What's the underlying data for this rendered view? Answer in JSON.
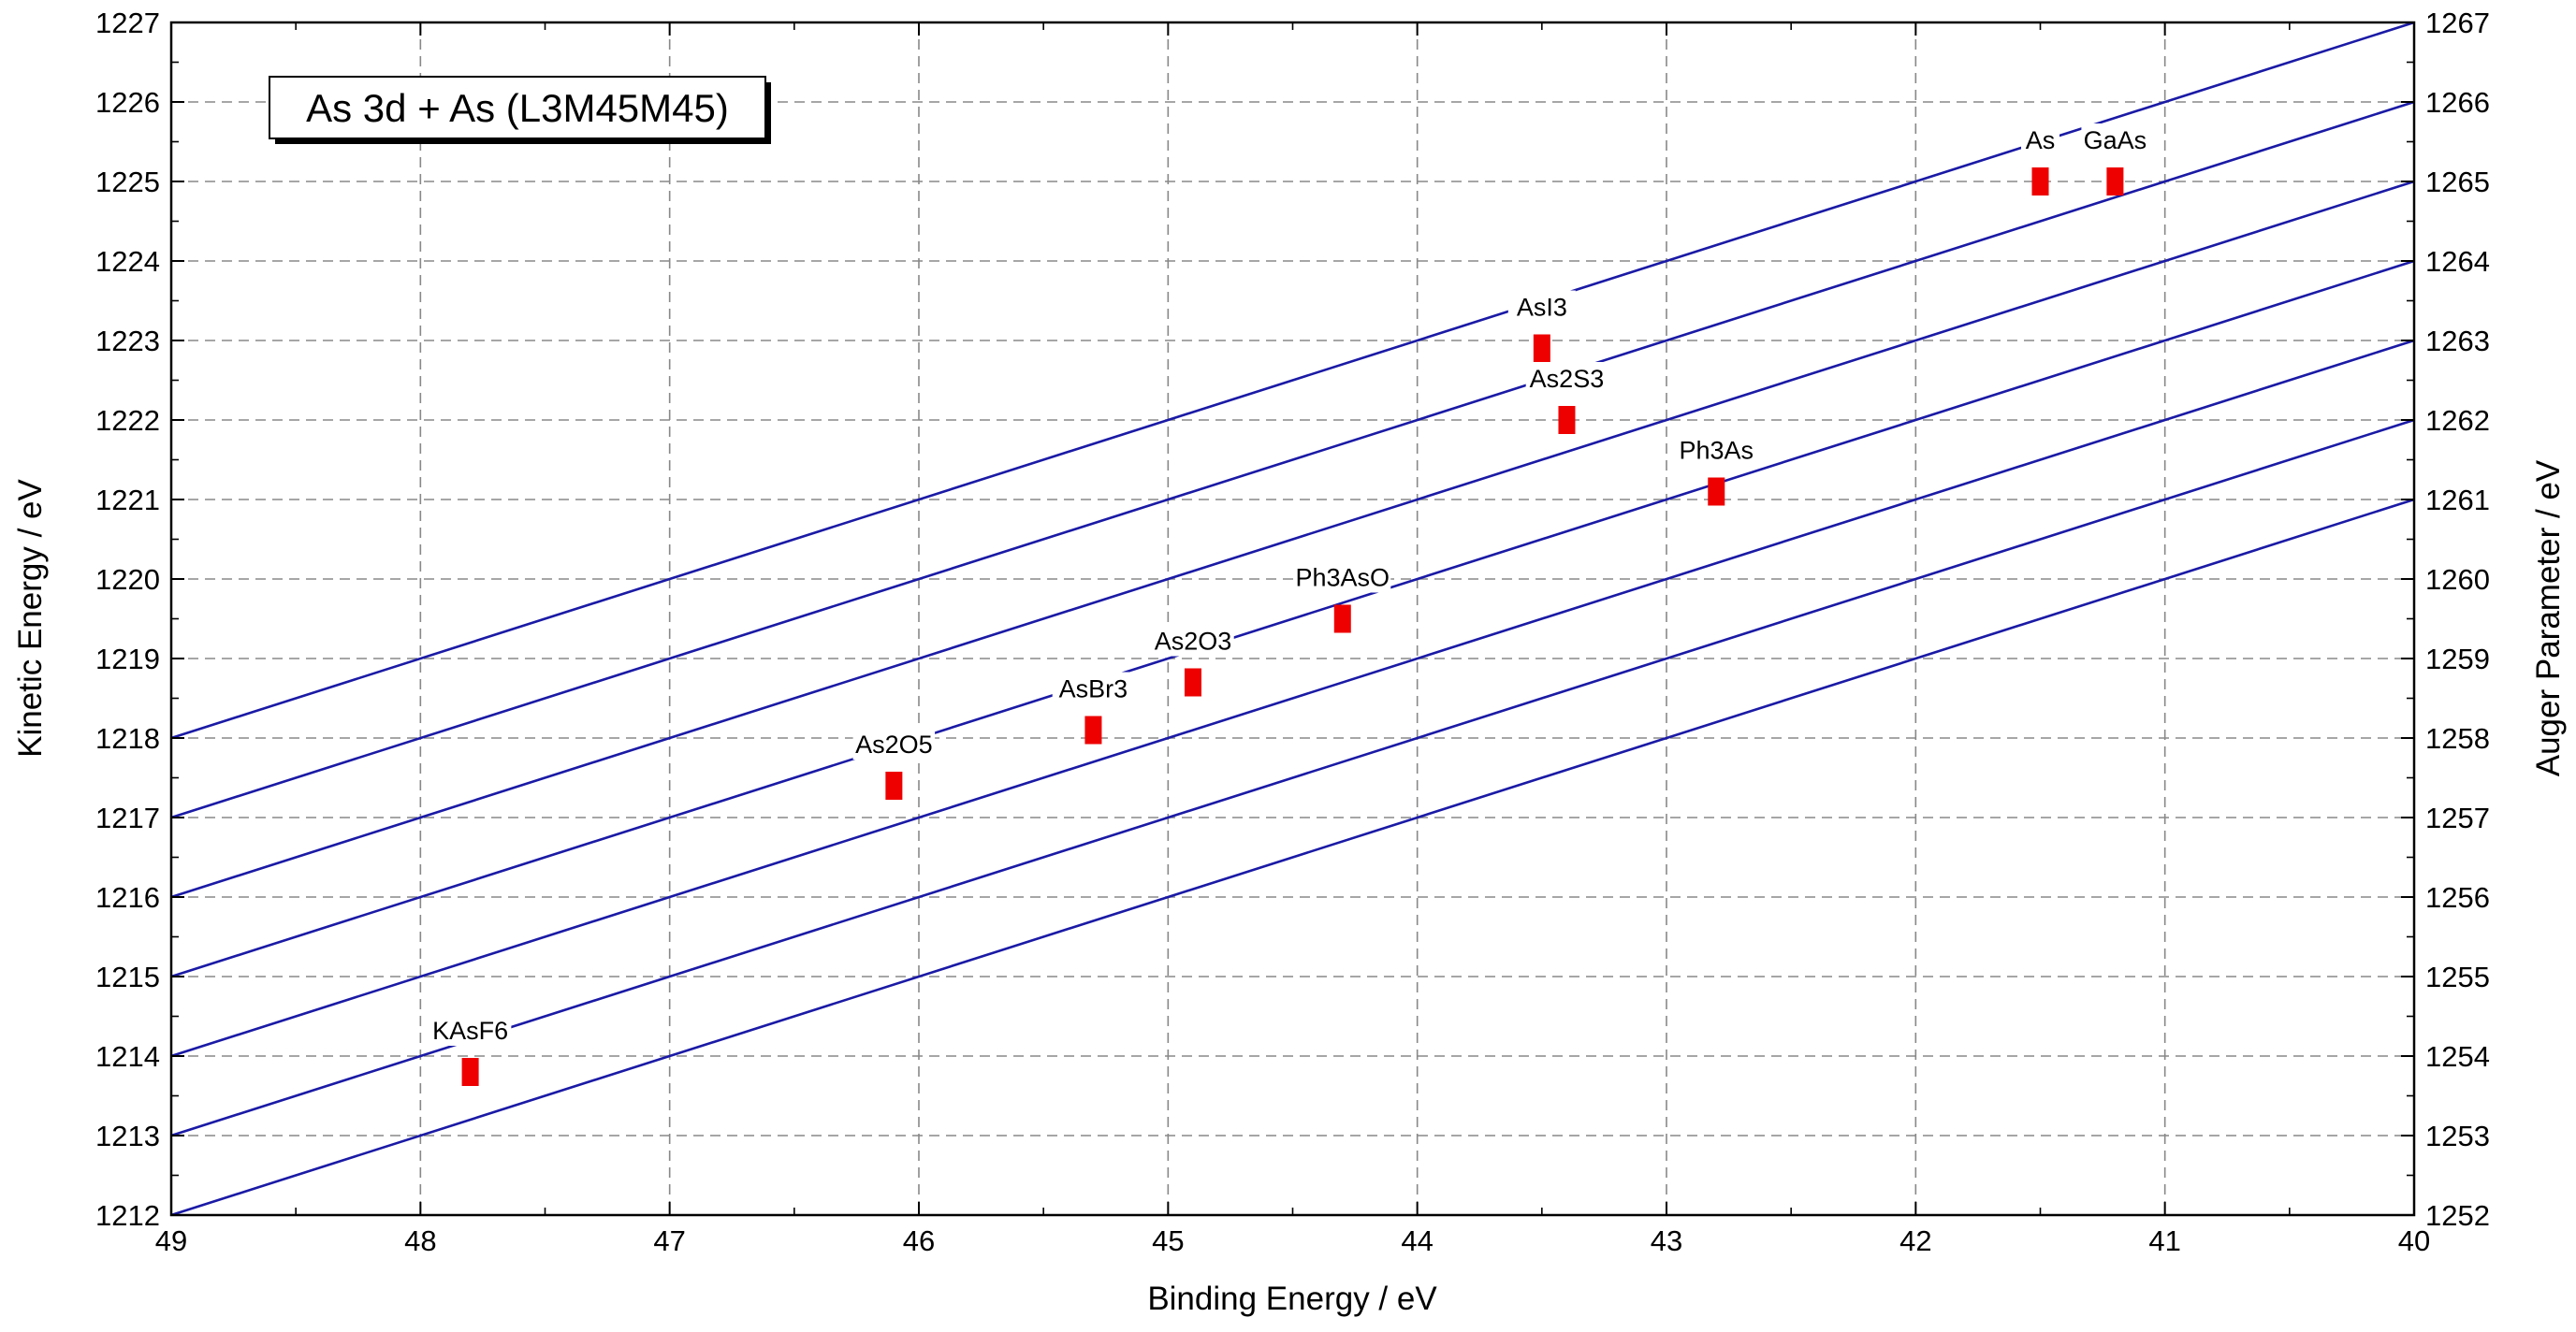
{
  "chart_data": {
    "type": "scatter",
    "title": "As 3d + As (L3M45M45)",
    "xlabel": "Binding Energy / eV",
    "ylabel": "Kinetic Energy / eV",
    "y2label": "Auger Parameter / eV",
    "xlim": [
      49,
      40
    ],
    "x_reversed": true,
    "ylim": [
      1212,
      1227
    ],
    "y2lim": [
      1252,
      1267
    ],
    "x_ticks": [
      49,
      48,
      47,
      46,
      45,
      44,
      43,
      42,
      41,
      40
    ],
    "y_ticks": [
      1212,
      1213,
      1214,
      1215,
      1216,
      1217,
      1218,
      1219,
      1220,
      1221,
      1222,
      1223,
      1224,
      1225,
      1226,
      1227
    ],
    "y2_ticks": [
      1252,
      1253,
      1254,
      1255,
      1256,
      1257,
      1258,
      1259,
      1260,
      1261,
      1262,
      1263,
      1264,
      1265,
      1266,
      1267
    ],
    "grid": true,
    "auger_lines": [
      1261,
      1262,
      1263,
      1264,
      1265,
      1266,
      1267
    ],
    "points": [
      {
        "label": "As",
        "x": 41.5,
        "y": 1225.0
      },
      {
        "label": "GaAs",
        "x": 41.2,
        "y": 1225.0
      },
      {
        "label": "AsI3",
        "x": 43.5,
        "y": 1222.9
      },
      {
        "label": "As2S3",
        "x": 43.4,
        "y": 1222.0
      },
      {
        "label": "Ph3As",
        "x": 42.8,
        "y": 1221.1
      },
      {
        "label": "Ph3AsO",
        "x": 44.3,
        "y": 1219.5
      },
      {
        "label": "As2O3",
        "x": 44.9,
        "y": 1218.7
      },
      {
        "label": "AsBr3",
        "x": 45.3,
        "y": 1218.1
      },
      {
        "label": "As2O5",
        "x": 46.1,
        "y": 1217.4
      },
      {
        "label": "KAsF6",
        "x": 47.8,
        "y": 1213.8
      }
    ],
    "colors": {
      "lines": "#1a1aa6",
      "points": "#ee0000",
      "grid": "#888888"
    }
  }
}
